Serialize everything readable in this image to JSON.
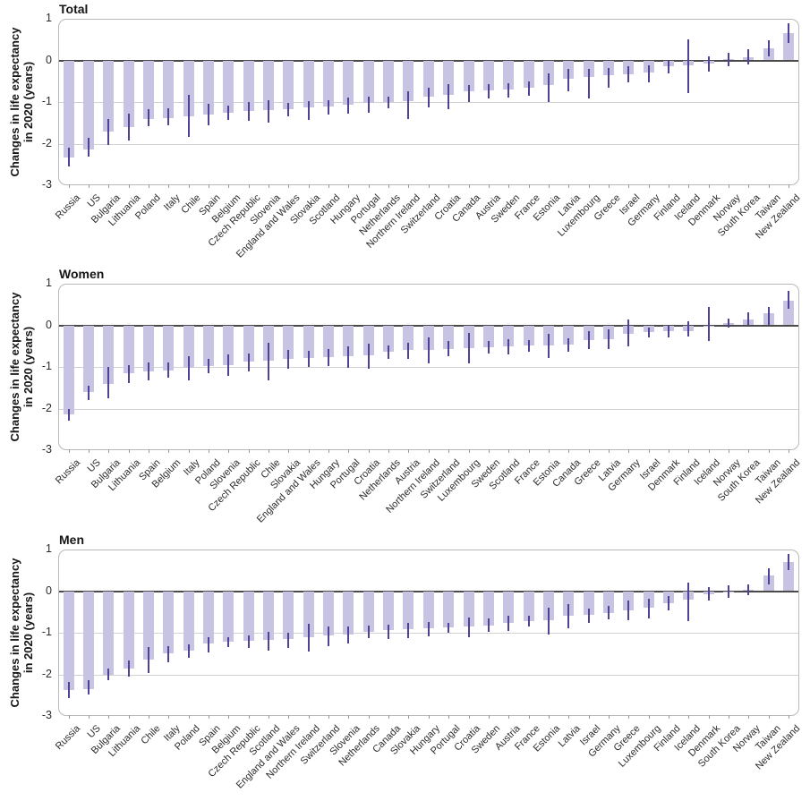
{
  "figure": {
    "y_axis_label_lines": [
      "Changes in life expectancy",
      "in 2020 (years)"
    ],
    "y_axis_ticks": [
      1,
      0,
      -1,
      -2,
      -3
    ]
  },
  "colors": {
    "bar_fill": "#c7c3e3",
    "error_bar": "#4d4296",
    "zero_line": "#4a4a4a",
    "gridline": "#d2d2d2",
    "panel_border": "#b9b9b9",
    "text": "#2b2b2b"
  },
  "chart_data": [
    {
      "type": "bar",
      "title": "Total",
      "ylabel": "Changes in life expectancy in 2020 (years)",
      "ylim": [
        -3,
        1
      ],
      "grid": "horizontal",
      "categories": [
        "Russia",
        "US",
        "Bulgaria",
        "Lithuania",
        "Poland",
        "Italy",
        "Chile",
        "Spain",
        "Belgium",
        "Czech Republic",
        "Slovenia",
        "England and Wales",
        "Slovakia",
        "Scotland",
        "Hungary",
        "Portugal",
        "Netherlands",
        "Northern Ireland",
        "Switzerland",
        "Croatia",
        "Canada",
        "Austria",
        "Sweden",
        "France",
        "Estonia",
        "Latvia",
        "Luxembourg",
        "Greece",
        "Israel",
        "Germany",
        "Finland",
        "Iceland",
        "Denmark",
        "Norway",
        "South Korea",
        "Taiwan",
        "New Zealand"
      ],
      "values": [
        -2.33,
        -2.15,
        -1.72,
        -1.6,
        -1.4,
        -1.38,
        -1.35,
        -1.3,
        -1.25,
        -1.22,
        -1.2,
        -1.17,
        -1.13,
        -1.1,
        -1.07,
        -1.03,
        -1.0,
        -0.97,
        -0.88,
        -0.82,
        -0.75,
        -0.72,
        -0.7,
        -0.66,
        -0.6,
        -0.45,
        -0.4,
        -0.36,
        -0.33,
        -0.3,
        -0.15,
        -0.12,
        -0.07,
        0.03,
        0.08,
        0.3,
        0.66
      ],
      "ci_low": [
        -2.55,
        -2.32,
        -2.04,
        -1.92,
        -1.58,
        -1.55,
        -1.84,
        -1.56,
        -1.42,
        -1.45,
        -1.5,
        -1.35,
        -1.42,
        -1.3,
        -1.28,
        -1.25,
        -1.15,
        -1.4,
        -1.12,
        -1.18,
        -1.0,
        -0.92,
        -0.9,
        -0.86,
        -1.0,
        -0.75,
        -0.92,
        -0.66,
        -0.52,
        -0.52,
        -0.32,
        -0.78,
        -0.27,
        -0.15,
        -0.1,
        0.09,
        0.42
      ],
      "ci_high": [
        -2.1,
        -1.85,
        -1.4,
        -1.28,
        -1.18,
        -1.15,
        -0.82,
        -1.05,
        -1.08,
        -1.0,
        -0.95,
        -1.02,
        -0.98,
        -0.95,
        -0.9,
        -0.88,
        -0.88,
        -0.75,
        -0.65,
        -0.58,
        -0.6,
        -0.56,
        -0.54,
        -0.5,
        -0.32,
        -0.2,
        -0.2,
        -0.18,
        -0.15,
        -0.12,
        0.0,
        0.5,
        0.1,
        0.18,
        0.26,
        0.48,
        0.9
      ]
    },
    {
      "type": "bar",
      "title": "Women",
      "ylabel": "Changes in life expectancy in 2020 (years)",
      "ylim": [
        -3,
        1
      ],
      "grid": "horizontal",
      "categories": [
        "Russia",
        "US",
        "Bulgaria",
        "Lithuania",
        "Spain",
        "Belgium",
        "Italy",
        "Poland",
        "Slovenia",
        "Czech Republic",
        "Chile",
        "Slovakia",
        "England and Wales",
        "Hungary",
        "Portugal",
        "Croatia",
        "Netherlands",
        "Austria",
        "Northern Ireland",
        "Switzerland",
        "Luxembourg",
        "Sweden",
        "Scotland",
        "France",
        "Estonia",
        "Canada",
        "Greece",
        "Latvia",
        "Germany",
        "Israel",
        "Denmark",
        "Finland",
        "Iceland",
        "Norway",
        "South Korea",
        "Taiwan",
        "New Zealand"
      ],
      "values": [
        -2.15,
        -1.6,
        -1.4,
        -1.15,
        -1.1,
        -1.08,
        -1.02,
        -0.98,
        -0.95,
        -0.88,
        -0.85,
        -0.8,
        -0.78,
        -0.77,
        -0.75,
        -0.72,
        -0.64,
        -0.6,
        -0.59,
        -0.56,
        -0.55,
        -0.53,
        -0.51,
        -0.49,
        -0.48,
        -0.46,
        -0.35,
        -0.34,
        -0.2,
        -0.17,
        -0.15,
        -0.13,
        -0.02,
        0.05,
        0.13,
        0.28,
        0.6
      ],
      "ci_low": [
        -2.3,
        -1.8,
        -1.75,
        -1.38,
        -1.32,
        -1.25,
        -1.32,
        -1.16,
        -1.22,
        -1.1,
        -1.32,
        -1.05,
        -1.0,
        -0.98,
        -1.02,
        -1.05,
        -0.8,
        -0.8,
        -0.92,
        -0.74,
        -0.92,
        -0.68,
        -0.7,
        -0.63,
        -0.78,
        -0.64,
        -0.58,
        -0.58,
        -0.5,
        -0.3,
        -0.28,
        -0.26,
        -0.38,
        -0.05,
        0.0,
        0.02,
        0.4
      ],
      "ci_high": [
        -2.0,
        -1.45,
        -1.0,
        -0.95,
        -0.9,
        -0.9,
        -0.75,
        -0.8,
        -0.7,
        -0.68,
        -0.42,
        -0.6,
        -0.62,
        -0.58,
        -0.5,
        -0.45,
        -0.48,
        -0.42,
        -0.28,
        -0.38,
        -0.18,
        -0.38,
        -0.34,
        -0.36,
        -0.2,
        -0.32,
        -0.15,
        -0.1,
        0.14,
        -0.05,
        -0.02,
        0.1,
        0.45,
        0.17,
        0.32,
        0.44,
        0.82
      ]
    },
    {
      "type": "bar",
      "title": "Men",
      "ylabel": "Changes in life expectancy in 2020 (years)",
      "ylim": [
        -3,
        1
      ],
      "grid": "horizontal",
      "categories": [
        "Russia",
        "US",
        "Bulgaria",
        "Lithuania",
        "Chile",
        "Italy",
        "Poland",
        "Spain",
        "Belgium",
        "Czech Republic",
        "Scotland",
        "England and Wales",
        "Northern Ireland",
        "Switzerland",
        "Slovenia",
        "Netherlands",
        "Canada",
        "Slovakia",
        "Hungary",
        "Portugal",
        "Croatia",
        "Sweden",
        "Austria",
        "France",
        "Estonia",
        "Latvia",
        "Israel",
        "Germany",
        "Greece",
        "Luxembourg",
        "Finland",
        "Iceland",
        "Denmark",
        "South Korea",
        "Norway",
        "Taiwan",
        "New Zealand"
      ],
      "values": [
        -2.37,
        -2.35,
        -2.02,
        -1.86,
        -1.64,
        -1.5,
        -1.43,
        -1.26,
        -1.22,
        -1.2,
        -1.18,
        -1.15,
        -1.1,
        -1.07,
        -1.05,
        -0.97,
        -0.94,
        -0.92,
        -0.9,
        -0.88,
        -0.86,
        -0.82,
        -0.77,
        -0.73,
        -0.7,
        -0.6,
        -0.57,
        -0.52,
        -0.47,
        -0.4,
        -0.28,
        -0.2,
        -0.08,
        -0.02,
        0.04,
        0.38,
        0.7
      ],
      "ci_low": [
        -2.58,
        -2.48,
        -2.15,
        -2.06,
        -1.96,
        -1.7,
        -1.6,
        -1.48,
        -1.35,
        -1.36,
        -1.43,
        -1.36,
        -1.46,
        -1.33,
        -1.26,
        -1.12,
        -1.16,
        -1.12,
        -1.08,
        -1.0,
        -1.1,
        -0.98,
        -0.95,
        -0.86,
        -1.04,
        -0.9,
        -0.76,
        -0.68,
        -0.7,
        -0.66,
        -0.46,
        -0.72,
        -0.22,
        -0.16,
        -0.1,
        0.16,
        0.5
      ],
      "ci_high": [
        -2.18,
        -2.15,
        -1.85,
        -1.66,
        -1.35,
        -1.32,
        -1.28,
        -1.1,
        -1.1,
        -1.06,
        -0.98,
        -1.0,
        -0.78,
        -0.84,
        -0.86,
        -0.82,
        -0.8,
        -0.76,
        -0.74,
        -0.76,
        -0.64,
        -0.66,
        -0.6,
        -0.6,
        -0.4,
        -0.32,
        -0.42,
        -0.36,
        -0.22,
        -0.18,
        -0.12,
        0.2,
        0.1,
        0.14,
        0.16,
        0.55,
        0.9
      ]
    }
  ]
}
